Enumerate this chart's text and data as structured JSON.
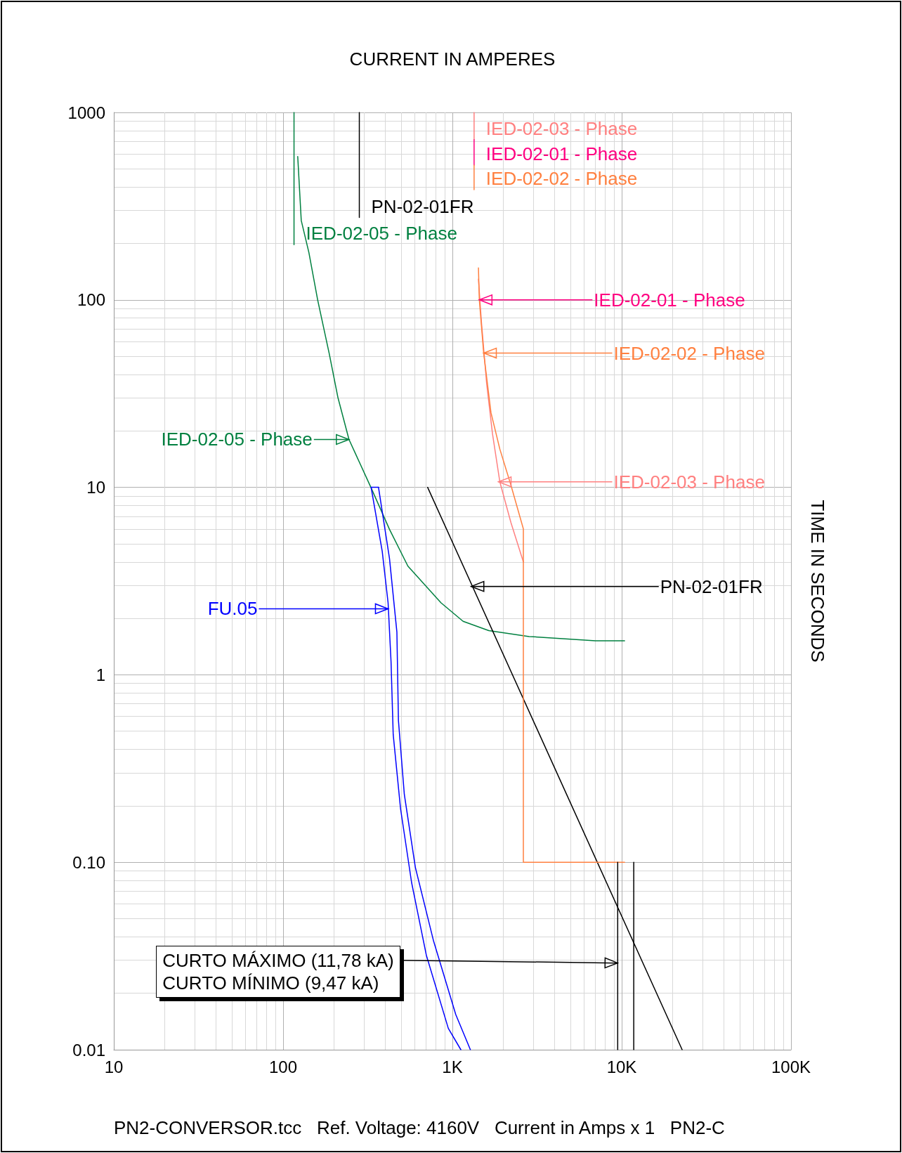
{
  "chart_data": {
    "type": "line",
    "xlabel": "CURRENT IN AMPERES",
    "ylabel": "TIME IN SECONDS",
    "log": "xy",
    "grid": true,
    "legend": false,
    "marker": "none",
    "line_style": "solid",
    "xlim": [
      10,
      100000
    ],
    "xticks": [
      10,
      100,
      {
        "value": 1000,
        "label": "1K"
      },
      {
        "value": 10000,
        "label": "10K"
      },
      {
        "value": 100000,
        "label": "100K"
      }
    ],
    "ylim": [
      0.01,
      1000
    ],
    "yticks": [
      0.01,
      {
        "value": 0.1,
        "label": "0.10"
      },
      1,
      10,
      100,
      1000
    ],
    "series": [
      {
        "name": "IED-02-05 - Phase",
        "color": "#008040",
        "x": [
          116,
          116,
          null,
          122,
          128,
          142,
          160,
          187,
          211,
          245,
          330,
          425,
          546,
          857,
          1156,
          1640,
          2840,
          7000,
          10400
        ],
        "values": [
          1000,
          197,
          null,
          582,
          265,
          179,
          100,
          52,
          30,
          18,
          10,
          5.97,
          3.8,
          2.42,
          1.93,
          1.72,
          1.6,
          1.52,
          1.52
        ]
      },
      {
        "name": "PN-02-01FR",
        "color": "#000000",
        "x": [
          282,
          282,
          null,
          714,
          22750
        ],
        "values": [
          1000,
          275,
          null,
          10,
          0.01
        ]
      },
      {
        "name": "IED-02-03 - Phase",
        "color": "#ff8080",
        "x": [
          1343,
          1343,
          null,
          1425,
          1486,
          1592,
          1725,
          1906,
          2215,
          2625
        ],
        "values": [
          1000,
          716,
          null,
          129,
          75,
          36,
          19.3,
          10.7,
          6.5,
          4.0
        ]
      },
      {
        "name": "IED-02-01 - Phase",
        "color": "#ff0080",
        "x": [
          1343,
          1343
        ],
        "values": [
          716,
          523
        ]
      },
      {
        "name": "IED-02-02 - Phase",
        "color": "#ff8040",
        "x": [
          1343,
          1343,
          null,
          1425,
          1442,
          1530,
          1690,
          1906,
          2215,
          2625,
          2625,
          10400
        ],
        "values": [
          523,
          387,
          null,
          148,
          100,
          52,
          25,
          16,
          10.3,
          6,
          0.1,
          0.1
        ]
      },
      {
        "color": "#0000ff",
        "x": [
          366,
          331,
          385,
          417,
          434,
          447,
          494,
          574,
          701,
          946,
          1122
        ],
        "values": [
          10,
          10,
          4.56,
          2.42,
          1.18,
          0.48,
          0.193,
          0.078,
          0.032,
          0.013,
          0.01
        ]
      },
      {
        "color": "#0000ff",
        "x": [
          366,
          425,
          470,
          480,
          520,
          604,
          774,
          1047,
          1277
        ],
        "values": [
          10,
          4.17,
          1.69,
          0.57,
          0.23,
          0.094,
          0.038,
          0.0154,
          0.01
        ]
      },
      {
        "color": "#000000",
        "x": [
          9470,
          9470,
          null,
          11780,
          11780
        ],
        "values": [
          0.01,
          0.1,
          null,
          0.01,
          0.1
        ]
      }
    ],
    "annotations": [
      {
        "text": "IED-02-01 - Phase",
        "x": 1442,
        "y": 100
      },
      {
        "text": "IED-02-02 - Phase",
        "x": 1530,
        "y": 52
      },
      {
        "text": "IED-02-03 - Phase",
        "x": 1870,
        "y": 10.7
      },
      {
        "text": "PN-02-01FR",
        "x": 1291,
        "y": 2.96
      },
      {
        "text": "IED-02-05 - Phase",
        "x": 245,
        "y": 18
      },
      {
        "text": "FU.05",
        "x": 417,
        "y": 2.25
      },
      {
        "text": "CURTO MÁXIMO (11,78 kA)\nCURTO MÍNIMO (9,47 kA)",
        "x": 9470,
        "y": 0.029
      },
      "PN2-CONVERSOR.tcc   Ref. Voltage: 4160V   Current in Amps x 1   PN2-C"
    ]
  }
}
